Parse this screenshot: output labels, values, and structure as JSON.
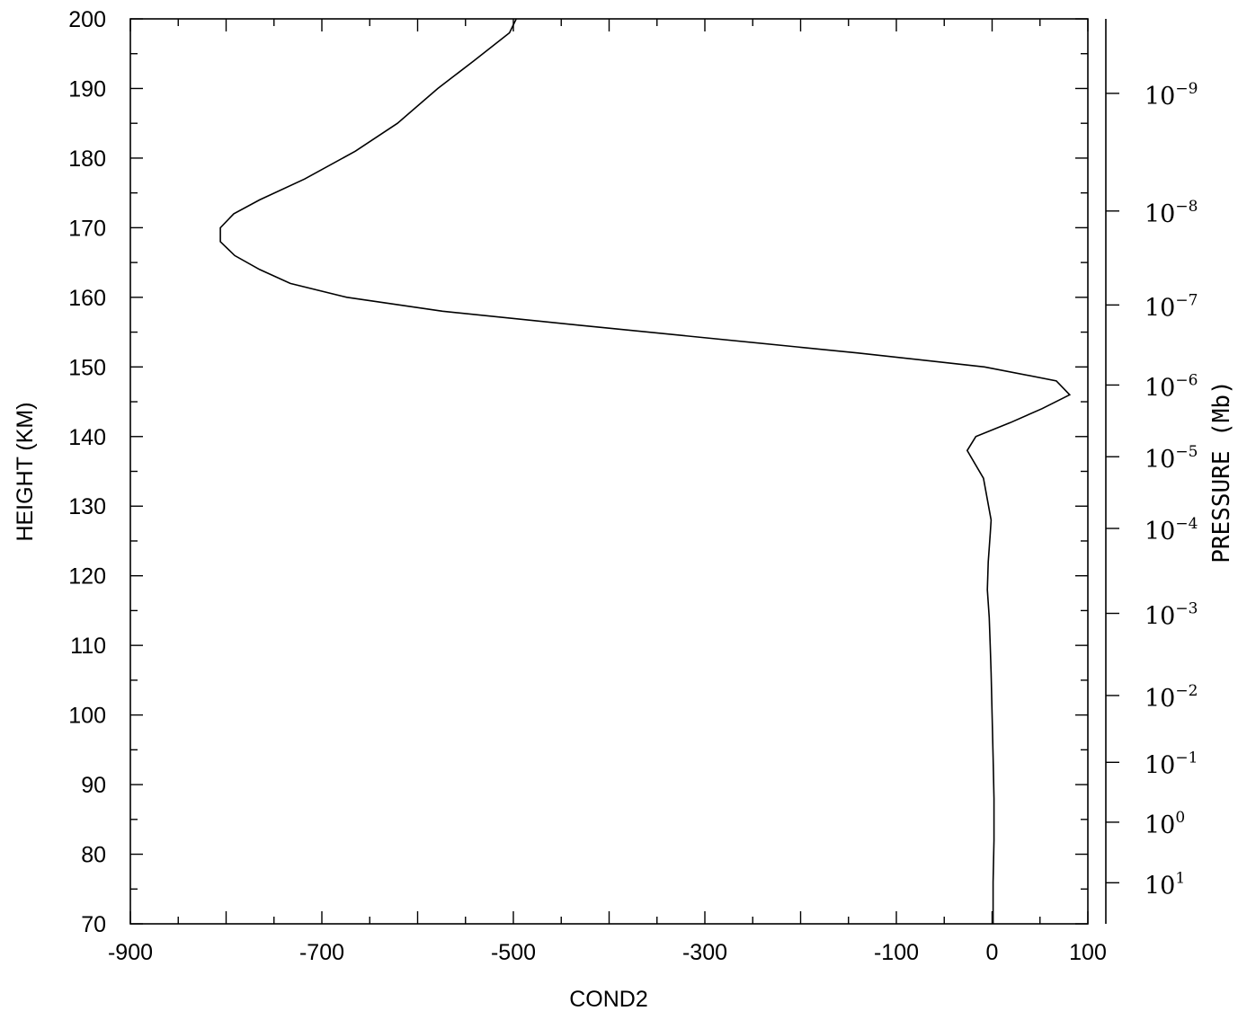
{
  "chart_data": {
    "type": "line",
    "xlabel": "COND2",
    "ylabel": "HEIGHT (KM)",
    "right_axis_label": "PRESSURE (Mb)",
    "xlim": [
      -900,
      100
    ],
    "ylim": [
      70,
      200
    ],
    "x_ticks": [
      -900,
      -700,
      -500,
      -300,
      -100,
      0,
      100
    ],
    "x_tick_labels": [
      "-900",
      "-700",
      "-500",
      "-300",
      "-100",
      "0",
      "100"
    ],
    "y_ticks": [
      70,
      80,
      90,
      100,
      110,
      120,
      130,
      140,
      150,
      160,
      170,
      180,
      190,
      200
    ],
    "y_tick_labels": [
      "70",
      "80",
      "90",
      "100",
      "110",
      "120",
      "130",
      "140",
      "150",
      "160",
      "170",
      "180",
      "190",
      "200"
    ],
    "pressure_ticks": [
      {
        "height": 189.3,
        "base": "10",
        "exp": "−9"
      },
      {
        "height": 172.4,
        "base": "10",
        "exp": "−8"
      },
      {
        "height": 158.9,
        "base": "10",
        "exp": "−7"
      },
      {
        "height": 147.4,
        "base": "10",
        "exp": "−6"
      },
      {
        "height": 137.1,
        "base": "10",
        "exp": "−5"
      },
      {
        "height": 126.8,
        "base": "10",
        "exp": "−4"
      },
      {
        "height": 114.6,
        "base": "10",
        "exp": "−3"
      },
      {
        "height": 102.8,
        "base": "10",
        "exp": "−2"
      },
      {
        "height": 93.2,
        "base": "10",
        "exp": "−1"
      },
      {
        "height": 84.6,
        "base": "10",
        "exp": "0"
      },
      {
        "height": 75.9,
        "base": "10",
        "exp": "1"
      }
    ],
    "series": [
      {
        "x": [
          1,
          1,
          2,
          2,
          1,
          0,
          -1,
          -2,
          -3,
          -5,
          -4,
          -2,
          -1,
          -9,
          -26,
          -17,
          19,
          52,
          81,
          67,
          -8,
          -140,
          -432,
          -574,
          -674,
          -733,
          -765,
          -791,
          -806,
          -806,
          -792,
          -765,
          -718,
          -665,
          -621,
          -579,
          -541,
          -504,
          -497
        ],
        "y": [
          70,
          76,
          82,
          88,
          94,
          100,
          106,
          110,
          114,
          118,
          122,
          126,
          128,
          134,
          138,
          140,
          142,
          144,
          146,
          148,
          150,
          152,
          156,
          158,
          160,
          162,
          164,
          166,
          168,
          170,
          172,
          174,
          177,
          181,
          185,
          190,
          194,
          198,
          200
        ]
      }
    ]
  }
}
